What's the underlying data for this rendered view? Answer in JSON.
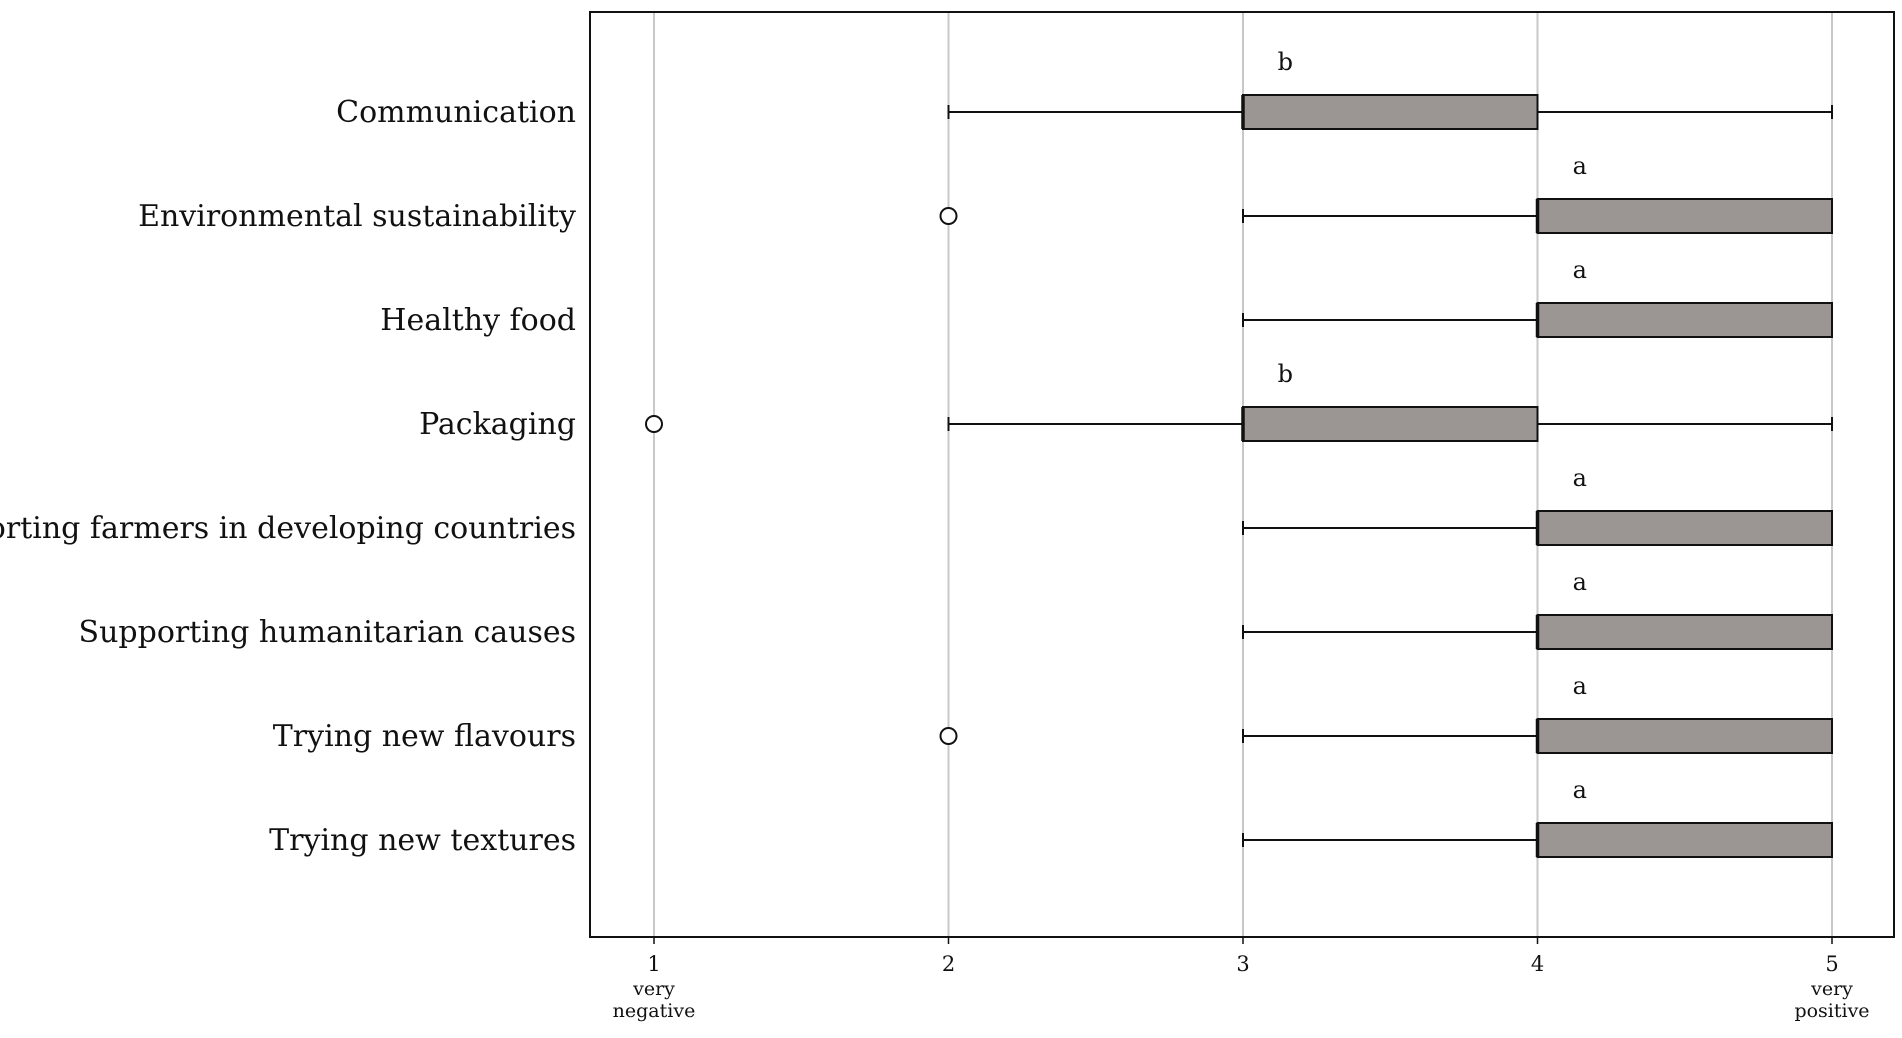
{
  "chart_data": {
    "type": "boxplot",
    "orientation": "horizontal",
    "xlim": [
      1,
      5
    ],
    "x_ticks": [
      "1",
      "2",
      "3",
      "4",
      "5"
    ],
    "x_tick_sublabels": {
      "1": "very negative",
      "5": "very positive"
    },
    "grid": "vertical",
    "colors": {
      "box_fill": "#9b9593",
      "line": "#111111",
      "grid": "#c8c8c8"
    },
    "categories": [
      {
        "label": "Communication",
        "whisker_low": 2,
        "q1": 3,
        "median": 3,
        "q3": 4,
        "whisker_high": 5,
        "outliers": [],
        "group": "b"
      },
      {
        "label": "Environmental sustainability",
        "whisker_low": 3,
        "q1": 4,
        "median": 4,
        "q3": 5,
        "whisker_high": 5,
        "outliers": [
          2
        ],
        "group": "a"
      },
      {
        "label": "Healthy food",
        "whisker_low": 3,
        "q1": 4,
        "median": 4,
        "q3": 5,
        "whisker_high": 5,
        "outliers": [],
        "group": "a"
      },
      {
        "label": "Packaging",
        "whisker_low": 2,
        "q1": 3,
        "median": 3,
        "q3": 4,
        "whisker_high": 5,
        "outliers": [
          1
        ],
        "group": "b"
      },
      {
        "label": "Supporting farmers in developing countries",
        "whisker_low": 3,
        "q1": 4,
        "median": 4,
        "q3": 5,
        "whisker_high": 5,
        "outliers": [],
        "group": "a"
      },
      {
        "label": "Supporting humanitarian causes",
        "whisker_low": 3,
        "q1": 4,
        "median": 4,
        "q3": 5,
        "whisker_high": 5,
        "outliers": [],
        "group": "a"
      },
      {
        "label": "Trying new flavours",
        "whisker_low": 3,
        "q1": 4,
        "median": 4,
        "q3": 5,
        "whisker_high": 5,
        "outliers": [
          2
        ],
        "group": "a"
      },
      {
        "label": "Trying new textures",
        "whisker_low": 3,
        "q1": 4,
        "median": 4,
        "q3": 5,
        "whisker_high": 5,
        "outliers": [],
        "group": "a"
      }
    ]
  }
}
